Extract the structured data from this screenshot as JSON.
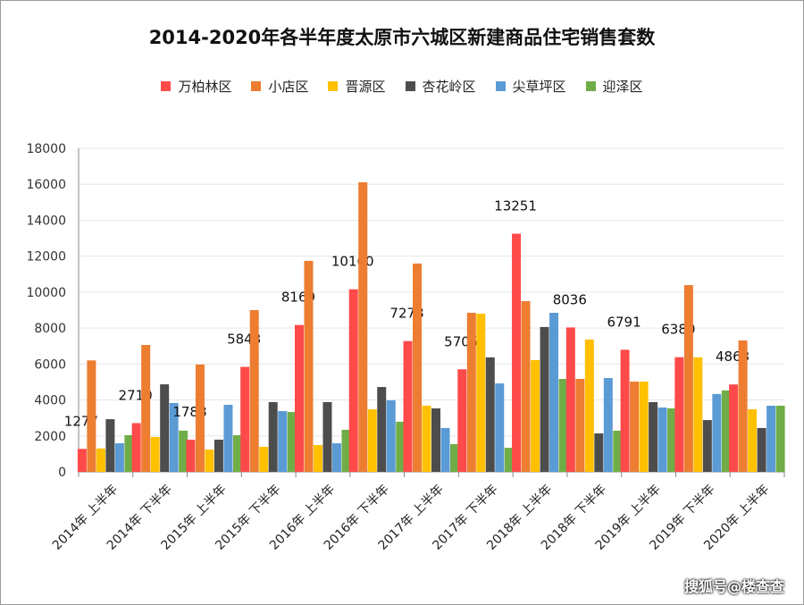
{
  "chart_data": {
    "type": "bar",
    "title": "2014-2020年各半年度太原市六城区新建商品住宅销售套数",
    "xlabel": "",
    "ylabel": "",
    "ylim": [
      0,
      18000
    ],
    "yticks": [
      0,
      2000,
      4000,
      6000,
      8000,
      10000,
      12000,
      14000,
      16000,
      18000
    ],
    "grid": true,
    "legend_position": "top",
    "categories": [
      "2014年 上半年",
      "2014年 下半年",
      "2015年 上半年",
      "2015年 下半年",
      "2016年 上半年",
      "2016年 下半年",
      "2017年 上半年",
      "2017年 下半年",
      "2018年 上半年",
      "2018年 下半年",
      "2019年 上半年",
      "2019年 下半年",
      "2020年 上半年"
    ],
    "series": [
      {
        "name": "万柏林区",
        "color": "#ff4a4a",
        "values": [
          1277,
          2710,
          1788,
          5843,
          8169,
          10160,
          7278,
          5705,
          13251,
          8036,
          6791,
          6380,
          4863
        ],
        "labeled": true
      },
      {
        "name": "小店区",
        "color": "#ed7d31",
        "values": [
          6200,
          7060,
          5970,
          9000,
          11740,
          16110,
          11590,
          8850,
          9500,
          5170,
          5020,
          10390,
          7310
        ]
      },
      {
        "name": "晋源区",
        "color": "#ffc000",
        "values": [
          1300,
          1940,
          1240,
          1390,
          1490,
          3480,
          3680,
          8800,
          6220,
          7360,
          5020,
          6370,
          3480
        ]
      },
      {
        "name": "杏花岭区",
        "color": "#4d4d4d",
        "values": [
          2930,
          4870,
          1790,
          3880,
          3880,
          4720,
          3530,
          6370,
          8060,
          2140,
          3880,
          2880,
          2440
        ]
      },
      {
        "name": "尖草坪区",
        "color": "#5b9bd5",
        "values": [
          1590,
          3830,
          3730,
          3380,
          1590,
          3980,
          2440,
          4920,
          8850,
          5220,
          3580,
          4330,
          3680
        ]
      },
      {
        "name": "迎泽区",
        "color": "#70ad47",
        "values": [
          2040,
          2290,
          2040,
          3330,
          2340,
          2790,
          1540,
          1340,
          5170,
          2290,
          3530,
          4530,
          3680
        ]
      }
    ]
  },
  "credit": "搜狐号@楼查查"
}
